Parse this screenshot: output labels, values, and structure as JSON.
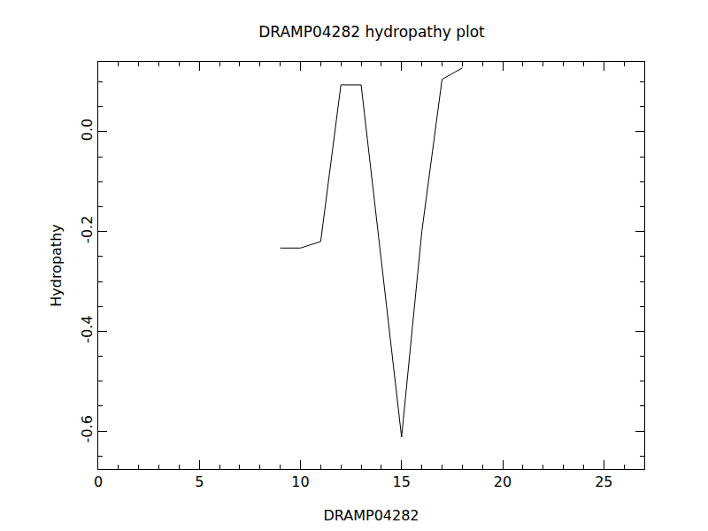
{
  "chart_data": {
    "type": "line",
    "title": "DRAMP04282 hydropathy plot",
    "x_label": "DRAMP04282",
    "y_label": "Hydropathy",
    "x": [
      9,
      10,
      11,
      12,
      13,
      14,
      15,
      16,
      17,
      18
    ],
    "values": [
      -0.233,
      -0.233,
      -0.22,
      0.094,
      0.094,
      -0.26,
      -0.612,
      -0.2,
      0.105,
      0.128
    ],
    "color": "#000000",
    "xlim": [
      0,
      27
    ],
    "xticks": [
      0,
      5,
      10,
      15,
      20,
      25
    ],
    "ylim": [
      -0.676,
      0.14
    ],
    "yticks": [
      -0.6,
      -0.4,
      -0.2,
      {
        "value": 0,
        "label": "0.0"
      }
    ],
    "grid": false
  }
}
